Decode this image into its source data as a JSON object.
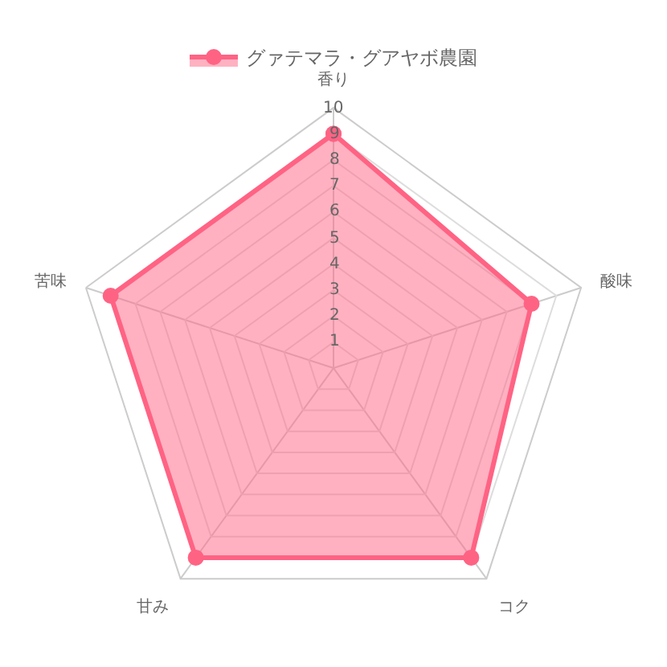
{
  "chart_data": {
    "type": "radar",
    "categories": [
      "香り",
      "酸味",
      "コク",
      "甘み",
      "苦味"
    ],
    "series": [
      {
        "name": "グァテマラ・グアヤボ農園",
        "color": "#ff6384",
        "values": [
          9,
          8,
          9,
          9,
          9
        ]
      }
    ],
    "ylim": [
      0,
      10
    ],
    "yticks": [
      1,
      2,
      3,
      4,
      5,
      6,
      7,
      8,
      9,
      10
    ],
    "grid": true,
    "legend": "top",
    "marker": "circle"
  }
}
